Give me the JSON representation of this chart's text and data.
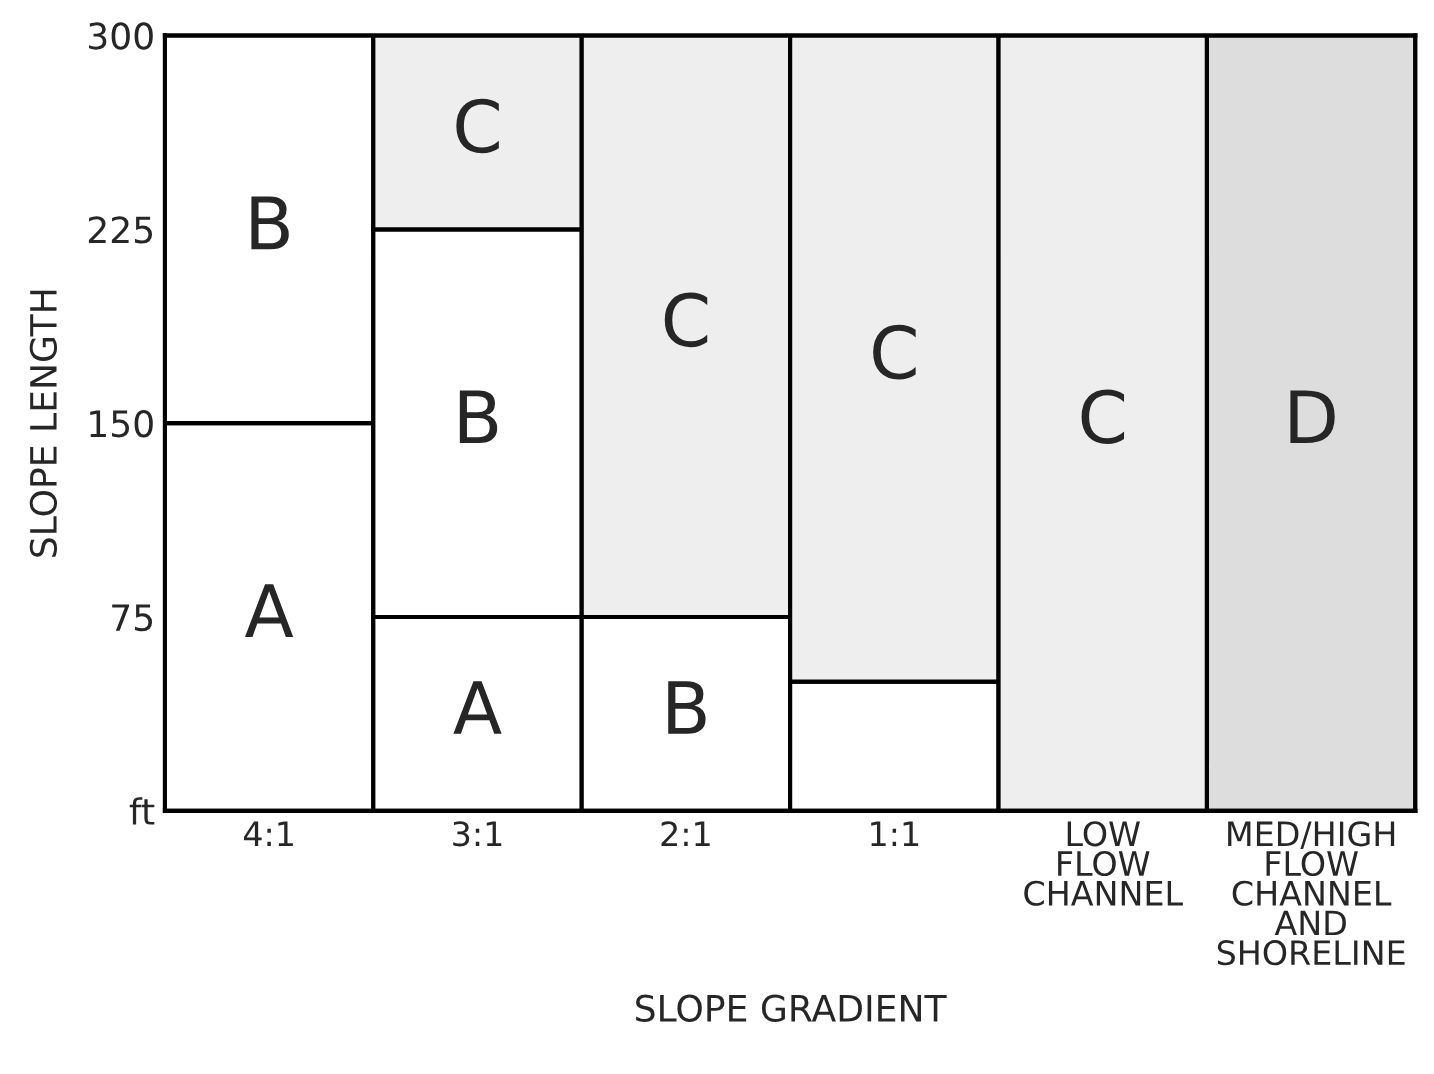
{
  "chart_data": {
    "type": "bar",
    "stacked": true,
    "xlabel": "SLOPE GRADIENT",
    "ylabel": "SLOPE LENGTH",
    "categories": [
      "4:1",
      "3:1",
      "2:1",
      "1:1",
      "LOW\nFLOW\nCHANNEL",
      "MED/HIGH\nFLOW\nCHANNEL\nAND\nSHORELINE"
    ],
    "series": [
      {
        "color": "#ffffff",
        "values": [
          150,
          75,
          null,
          null,
          null,
          null
        ],
        "value_labels": [
          "A",
          "A",
          null,
          null,
          null,
          null
        ]
      },
      {
        "color": "#ffffff",
        "values": [
          150,
          150,
          75,
          50,
          null,
          null
        ],
        "value_labels": [
          "B",
          "B",
          "B",
          null,
          null,
          null
        ]
      },
      {
        "color": "#eeeeee",
        "values": [
          null,
          75,
          225,
          250,
          300,
          null
        ],
        "value_labels": [
          null,
          "C",
          "C",
          "C",
          "C",
          null
        ]
      },
      {
        "color": "#dddddd",
        "values": [
          null,
          null,
          null,
          null,
          null,
          300
        ],
        "value_labels": [
          null,
          null,
          null,
          null,
          null,
          "D"
        ]
      }
    ],
    "ylim": [
      0,
      300
    ],
    "yticks": [
      {
        "value": 0,
        "label": "ft"
      },
      75,
      150,
      225,
      300
    ]
  }
}
